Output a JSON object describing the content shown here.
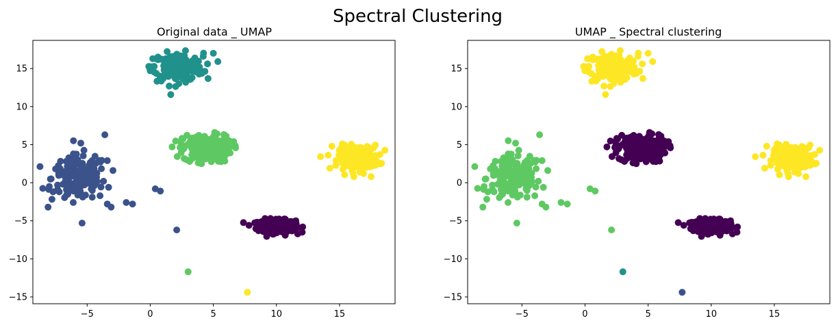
{
  "figure": {
    "title": "Spectral Clustering"
  },
  "chart_data": [
    {
      "type": "scatter",
      "title": "Original data _ UMAP",
      "xlabel": "",
      "ylabel": "",
      "xlim": [
        -9.3,
        19.4
      ],
      "ylim": [
        -15.9,
        18.7
      ],
      "xticks": [
        -5,
        0,
        5,
        10,
        15
      ],
      "yticks": [
        -15,
        -10,
        -5,
        0,
        5,
        10,
        15
      ],
      "grid": false,
      "colormap": "viridis",
      "clusters": [
        {
          "color": "#440154",
          "center": [
            10.0,
            -5.7
          ],
          "spread": [
            0.75,
            0.4
          ],
          "n": 320
        },
        {
          "color": "#3b528b",
          "center": [
            -5.6,
            0.6
          ],
          "spread": [
            1.1,
            1.5
          ],
          "n": 160
        },
        {
          "color": "#21918c",
          "center": [
            2.2,
            15.2
          ],
          "spread": [
            1.0,
            0.9
          ],
          "n": 200
        },
        {
          "color": "#5ec962",
          "center": [
            4.5,
            4.5
          ],
          "spread": [
            0.95,
            0.9
          ],
          "n": 200
        },
        {
          "color": "#fde725",
          "center": [
            16.5,
            3.3
          ],
          "spread": [
            0.8,
            0.8
          ],
          "n": 200
        }
      ],
      "extra_points": [
        {
          "x": -3.6,
          "y": 6.3,
          "color": "#3b528b"
        },
        {
          "x": -5.5,
          "y": 5.2,
          "color": "#3b528b"
        },
        {
          "x": -3.4,
          "y": 2.9,
          "color": "#3b528b"
        },
        {
          "x": -4.6,
          "y": 2.9,
          "color": "#3b528b"
        },
        {
          "x": -7.5,
          "y": 1.8,
          "color": "#3b528b"
        },
        {
          "x": -8.0,
          "y": -0.5,
          "color": "#3b528b"
        },
        {
          "x": -7.7,
          "y": -1.2,
          "color": "#3b528b"
        },
        {
          "x": -3.7,
          "y": 0.2,
          "color": "#3b528b"
        },
        {
          "x": -3.3,
          "y": -0.6,
          "color": "#3b528b"
        },
        {
          "x": -3.1,
          "y": -3.2,
          "color": "#3b528b"
        },
        {
          "x": -3.4,
          "y": -2.8,
          "color": "#3b528b"
        },
        {
          "x": -1.9,
          "y": -2.6,
          "color": "#3b528b"
        },
        {
          "x": -1.4,
          "y": -2.8,
          "color": "#3b528b"
        },
        {
          "x": -6.1,
          "y": -2.6,
          "color": "#3b528b"
        },
        {
          "x": -5.4,
          "y": -5.3,
          "color": "#3b528b"
        },
        {
          "x": 0.4,
          "y": -0.8,
          "color": "#3b528b"
        },
        {
          "x": 0.8,
          "y": -1.1,
          "color": "#3b528b"
        },
        {
          "x": 2.1,
          "y": -6.2,
          "color": "#3b528b"
        },
        {
          "x": 3.0,
          "y": -11.7,
          "color": "#5ec962"
        },
        {
          "x": 7.7,
          "y": -14.4,
          "color": "#fde725"
        },
        {
          "x": 5.0,
          "y": 17.0,
          "color": "#21918c"
        },
        {
          "x": 4.2,
          "y": 16.6,
          "color": "#21918c"
        },
        {
          "x": 0.2,
          "y": 16.3,
          "color": "#21918c"
        },
        {
          "x": 1.5,
          "y": 12.7,
          "color": "#21918c"
        },
        {
          "x": 0.0,
          "y": 14.7,
          "color": "#21918c"
        },
        {
          "x": 17.5,
          "y": 0.8,
          "color": "#fde725"
        },
        {
          "x": 18.2,
          "y": 3.7,
          "color": "#fde725"
        },
        {
          "x": 17.9,
          "y": 3.0,
          "color": "#fde725"
        },
        {
          "x": 14.4,
          "y": 4.8,
          "color": "#fde725"
        },
        {
          "x": 6.2,
          "y": 4.5,
          "color": "#5ec962"
        },
        {
          "x": 2.4,
          "y": 5.4,
          "color": "#5ec962"
        },
        {
          "x": 3.8,
          "y": 2.6,
          "color": "#5ec962"
        },
        {
          "x": 5.4,
          "y": 2.8,
          "color": "#5ec962"
        },
        {
          "x": 8.6,
          "y": -5.5,
          "color": "#440154"
        },
        {
          "x": 11.5,
          "y": -6.0,
          "color": "#440154"
        },
        {
          "x": 10.7,
          "y": -6.9,
          "color": "#440154"
        },
        {
          "x": 9.1,
          "y": -4.7,
          "color": "#440154"
        }
      ]
    },
    {
      "type": "scatter",
      "title": "UMAP _ Spectral clustering",
      "xlabel": "",
      "ylabel": "",
      "xlim": [
        -9.3,
        19.4
      ],
      "ylim": [
        -15.9,
        18.7
      ],
      "xticks": [
        -5,
        0,
        5,
        10,
        15
      ],
      "yticks": [
        -15,
        -10,
        -5,
        0,
        5,
        10,
        15
      ],
      "grid": false,
      "colormap": "viridis",
      "clusters": [
        {
          "color": "#440154",
          "center": [
            10.0,
            -5.7
          ],
          "spread": [
            0.75,
            0.4
          ],
          "n": 320
        },
        {
          "color": "#5ec962",
          "center": [
            -5.6,
            0.6
          ],
          "spread": [
            1.1,
            1.5
          ],
          "n": 160
        },
        {
          "color": "#fde725",
          "center": [
            2.2,
            15.2
          ],
          "spread": [
            1.0,
            0.9
          ],
          "n": 200
        },
        {
          "color": "#440154",
          "center": [
            4.5,
            4.5
          ],
          "spread": [
            0.95,
            0.9
          ],
          "n": 200
        },
        {
          "color": "#fde725",
          "center": [
            16.5,
            3.3
          ],
          "spread": [
            0.8,
            0.8
          ],
          "n": 200
        }
      ],
      "extra_points": [
        {
          "x": -3.6,
          "y": 6.3,
          "color": "#5ec962"
        },
        {
          "x": -5.5,
          "y": 5.2,
          "color": "#5ec962"
        },
        {
          "x": -3.4,
          "y": 2.9,
          "color": "#5ec962"
        },
        {
          "x": -4.6,
          "y": 2.9,
          "color": "#5ec962"
        },
        {
          "x": -7.5,
          "y": 1.8,
          "color": "#5ec962"
        },
        {
          "x": -8.0,
          "y": -0.5,
          "color": "#5ec962"
        },
        {
          "x": -7.7,
          "y": -1.2,
          "color": "#5ec962"
        },
        {
          "x": -3.7,
          "y": 0.2,
          "color": "#5ec962"
        },
        {
          "x": -3.3,
          "y": -0.6,
          "color": "#5ec962"
        },
        {
          "x": -3.1,
          "y": -3.2,
          "color": "#5ec962"
        },
        {
          "x": -3.4,
          "y": -2.8,
          "color": "#5ec962"
        },
        {
          "x": -1.9,
          "y": -2.6,
          "color": "#5ec962"
        },
        {
          "x": -1.4,
          "y": -2.8,
          "color": "#5ec962"
        },
        {
          "x": -6.1,
          "y": -2.6,
          "color": "#5ec962"
        },
        {
          "x": -5.4,
          "y": -5.3,
          "color": "#5ec962"
        },
        {
          "x": 0.4,
          "y": -0.8,
          "color": "#5ec962"
        },
        {
          "x": 0.8,
          "y": -1.1,
          "color": "#5ec962"
        },
        {
          "x": 2.1,
          "y": -6.2,
          "color": "#5ec962"
        },
        {
          "x": 3.0,
          "y": -11.7,
          "color": "#21918c"
        },
        {
          "x": 7.7,
          "y": -14.4,
          "color": "#3b528b"
        },
        {
          "x": 5.0,
          "y": 17.0,
          "color": "#fde725"
        },
        {
          "x": 4.2,
          "y": 16.6,
          "color": "#fde725"
        },
        {
          "x": 0.2,
          "y": 16.3,
          "color": "#fde725"
        },
        {
          "x": 1.5,
          "y": 12.7,
          "color": "#fde725"
        },
        {
          "x": 0.0,
          "y": 14.7,
          "color": "#fde725"
        },
        {
          "x": 17.5,
          "y": 0.8,
          "color": "#fde725"
        },
        {
          "x": 18.2,
          "y": 3.7,
          "color": "#fde725"
        },
        {
          "x": 17.9,
          "y": 3.0,
          "color": "#fde725"
        },
        {
          "x": 14.4,
          "y": 4.8,
          "color": "#fde725"
        },
        {
          "x": 6.2,
          "y": 4.5,
          "color": "#440154"
        },
        {
          "x": 2.4,
          "y": 5.4,
          "color": "#440154"
        },
        {
          "x": 3.8,
          "y": 2.6,
          "color": "#440154"
        },
        {
          "x": 5.4,
          "y": 2.8,
          "color": "#440154"
        },
        {
          "x": 8.6,
          "y": -5.5,
          "color": "#440154"
        },
        {
          "x": 11.5,
          "y": -6.0,
          "color": "#440154"
        },
        {
          "x": 10.7,
          "y": -6.9,
          "color": "#440154"
        },
        {
          "x": 9.1,
          "y": -4.7,
          "color": "#440154"
        }
      ]
    }
  ]
}
